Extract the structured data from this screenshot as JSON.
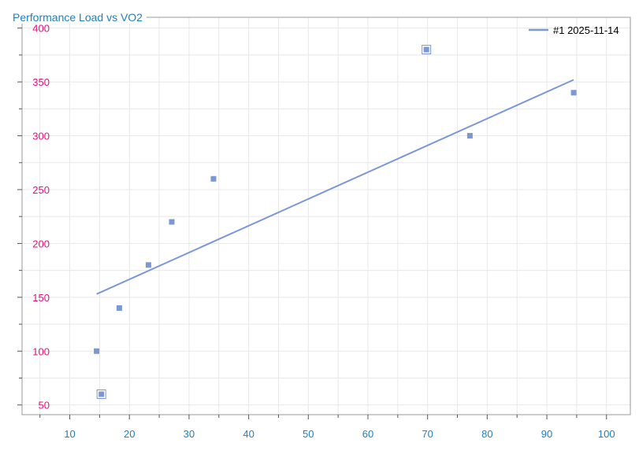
{
  "colors": {
    "title": "#1f7fbf",
    "x_ticks": "#1f7fbf",
    "y_ticks": "#e6127a",
    "series": "#7b97d6",
    "grid": "#e8e8e8",
    "frame": "#9a9a9a"
  },
  "chart_data": {
    "type": "scatter",
    "title": "Performance Load vs VO2",
    "xlabel": "",
    "ylabel": "",
    "xlim": [
      2,
      104
    ],
    "ylim": [
      41,
      410
    ],
    "xticks": [
      10,
      20,
      30,
      40,
      50,
      60,
      70,
      80,
      90,
      100
    ],
    "yticks": [
      50,
      100,
      150,
      200,
      250,
      300,
      350,
      400
    ],
    "grid": true,
    "legend_position": "top-right",
    "series": [
      {
        "name": "#1 2025-11-14",
        "points": [
          {
            "x": 14.5,
            "y": 100,
            "boxed": false
          },
          {
            "x": 15.3,
            "y": 60,
            "boxed": true
          },
          {
            "x": 18.3,
            "y": 140,
            "boxed": false
          },
          {
            "x": 23.2,
            "y": 180,
            "boxed": false
          },
          {
            "x": 27.1,
            "y": 220,
            "boxed": false
          },
          {
            "x": 34.1,
            "y": 260,
            "boxed": false
          },
          {
            "x": 69.8,
            "y": 380,
            "boxed": true
          },
          {
            "x": 77.1,
            "y": 300,
            "boxed": false
          },
          {
            "x": 94.5,
            "y": 340,
            "boxed": false
          }
        ],
        "trendline": {
          "x": [
            14.5,
            94.5
          ],
          "y": [
            153,
            352
          ]
        }
      }
    ]
  }
}
